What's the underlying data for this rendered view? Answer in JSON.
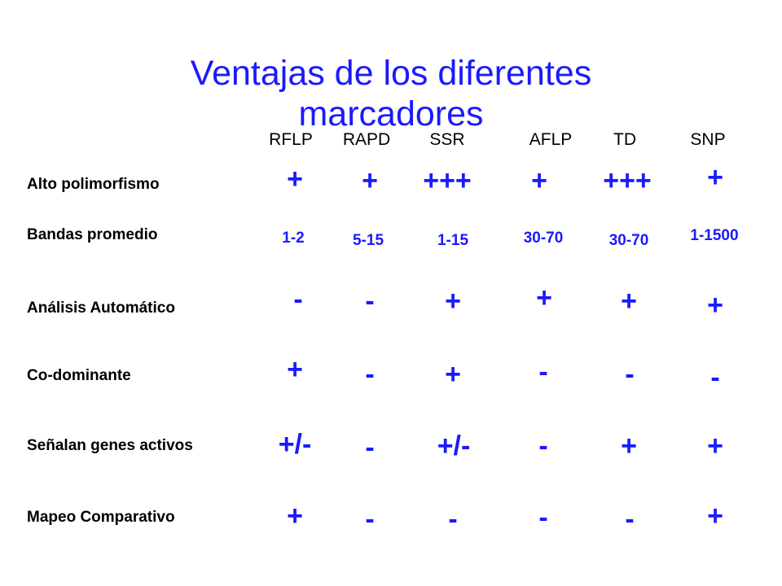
{
  "slide": {
    "title_line1": "Ventajas de los diferentes",
    "title_line2": "marcadores"
  },
  "columns": [
    "RFLP",
    "RAPD",
    "SSR",
    "AFLP",
    "TD",
    "SNP"
  ],
  "rows": [
    {
      "label": "Alto polimorfismo",
      "values": [
        "+",
        "+",
        "+++",
        "+",
        "+++",
        "+"
      ]
    },
    {
      "label": "Bandas promedio",
      "values": [
        "1-2",
        "5-15",
        "1-15",
        "30-70",
        "30-70",
        "1-1500"
      ]
    },
    {
      "label": "Análisis Automático",
      "values": [
        "-",
        "-",
        "+",
        "+",
        "+",
        "+"
      ]
    },
    {
      "label": "Co-dominante",
      "values": [
        "+",
        "-",
        "+",
        "-",
        "-",
        "-"
      ]
    },
    {
      "label": "Señalan genes activos",
      "values": [
        "+/-",
        "-",
        "+/-",
        "-",
        "+",
        "+"
      ]
    },
    {
      "label": "Mapeo Comparativo",
      "values": [
        "+",
        "-",
        "-",
        "-",
        "-",
        "+"
      ]
    }
  ],
  "colors": {
    "title": "#1a1aff",
    "cell_values": "#1a1aff",
    "labels": "#000000"
  }
}
